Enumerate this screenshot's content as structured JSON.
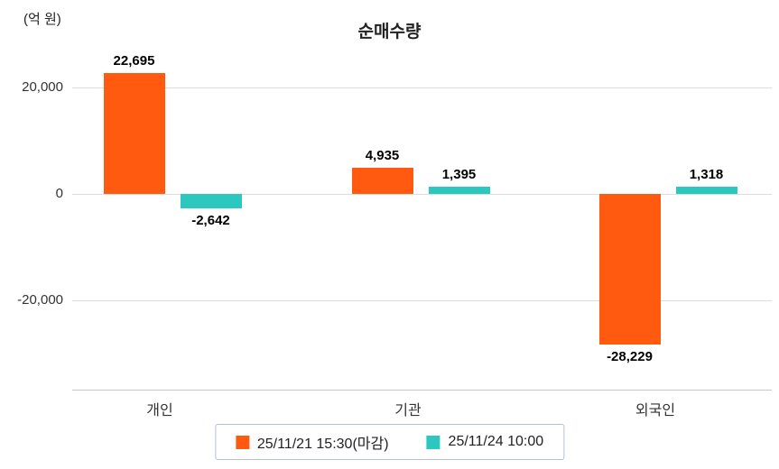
{
  "title": "순매수량",
  "unit_label": "(억 원)",
  "chart_data": {
    "type": "bar",
    "title": "순매수량",
    "ylabel": "(억 원)",
    "xlabel": "",
    "categories": [
      "개인",
      "기관",
      "외국인"
    ],
    "series": [
      {
        "name": "25/11/21 15:30(마감)",
        "color": "#ff5a0f",
        "values": [
          22695,
          4935,
          -28229
        ],
        "value_labels": [
          "22,695",
          "4,935",
          "-28,229"
        ]
      },
      {
        "name": "25/11/24 10:00",
        "color": "#2cc8c0",
        "values": [
          -2642,
          1395,
          1318
        ],
        "value_labels": [
          "-2,642",
          "1,395",
          "1,318"
        ]
      }
    ],
    "y_ticks": [
      {
        "value": 20000,
        "label": "20,000"
      },
      {
        "value": 0,
        "label": "0"
      },
      {
        "value": -20000,
        "label": "-20,000"
      }
    ],
    "ylim": [
      -32000,
      26000
    ],
    "grid": true,
    "legend_position": "bottom"
  }
}
